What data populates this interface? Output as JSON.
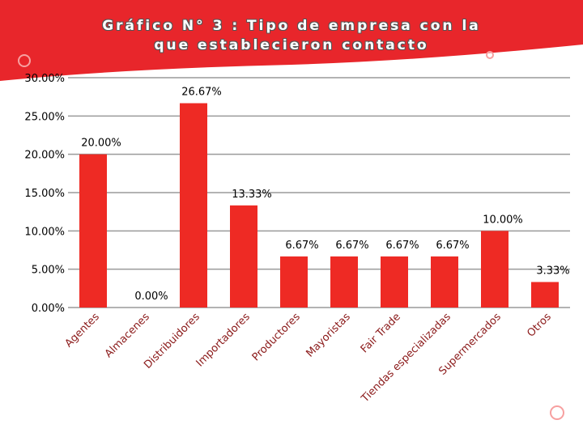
{
  "chart_data": {
    "type": "bar",
    "title": "Gráfico N° 3 : Tipo de empresa con la que establecieron contacto",
    "categories": [
      "Agentes",
      "Almacenes",
      "Distribuidores",
      "Importadores",
      "Productores",
      "Mayoristas",
      "Fair Trade",
      "Tiendas especializadas",
      "Supermercados",
      "Otros"
    ],
    "values": [
      20,
      0,
      26.67,
      13.33,
      6.67,
      6.67,
      6.67,
      6.67,
      10,
      3.33
    ],
    "value_labels": [
      "20.00%",
      "0.00%",
      "26.67%",
      "13.33%",
      "6.67%",
      "6.67%",
      "6.67%",
      "6.67%",
      "10.00%",
      "3.33%"
    ],
    "color": "#ee2a24",
    "ylim": [
      0,
      30
    ],
    "yticks": [
      {
        "value": 0,
        "label": "0.00%"
      },
      {
        "value": 5,
        "label": "5.00%"
      },
      {
        "value": 10,
        "label": "10.00%"
      },
      {
        "value": 15,
        "label": "15.00%"
      },
      {
        "value": 20,
        "label": "20.00%"
      },
      {
        "value": 25,
        "label": "25.00%"
      },
      {
        "value": 30,
        "label": "30.00%"
      }
    ],
    "grid": true
  }
}
